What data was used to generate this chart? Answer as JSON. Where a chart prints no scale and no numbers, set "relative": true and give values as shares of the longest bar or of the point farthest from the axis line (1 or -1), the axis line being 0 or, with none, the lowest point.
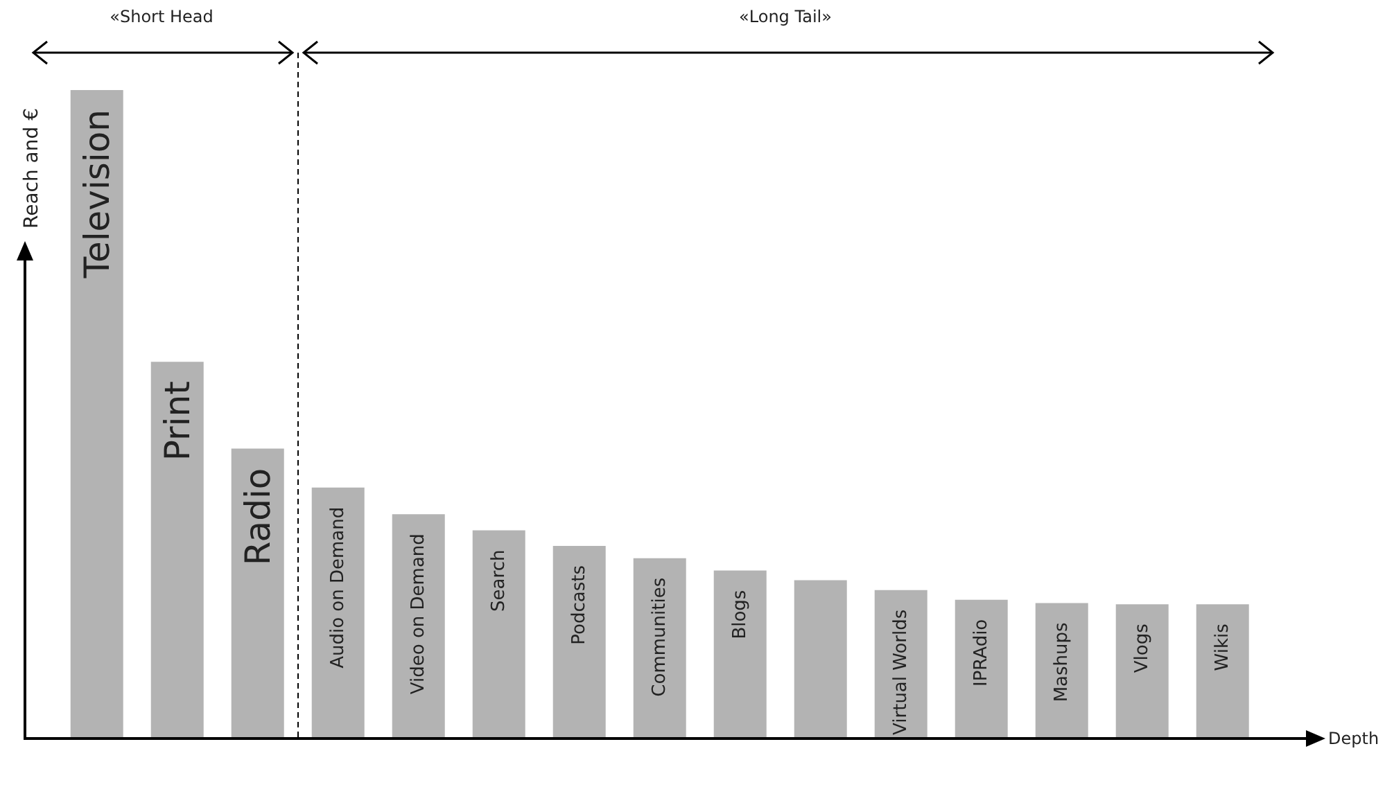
{
  "chart_data": {
    "type": "bar",
    "relative": true,
    "xlabel": "Depth",
    "ylabel": "Reach and €",
    "categories": [
      "Television",
      "Print",
      "Radio",
      "Audio on Demand",
      "Video on Demand",
      "Search",
      "Podcasts",
      "Communities",
      "Blogs",
      null,
      "Virtual Worlds",
      "IPRAdio",
      "Mashups",
      "Vlogs",
      "Wikis"
    ],
    "values": [
      1,
      0.581,
      0.447,
      0.387,
      0.346,
      0.321,
      0.297,
      0.278,
      0.259,
      0.244,
      0.229,
      0.214,
      0.209,
      0.207,
      0.207
    ],
    "color": "#b3b3b3",
    "annotations": [
      "«Short Head",
      "«Long Tail»"
    ],
    "grid": false,
    "legend": false
  }
}
